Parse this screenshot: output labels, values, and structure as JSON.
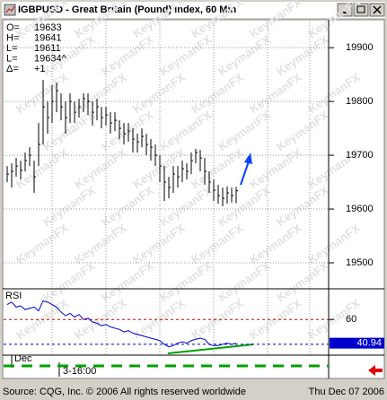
{
  "window": {
    "title": "IGBPUSD - Great Britain (Pound) Index, 60 Min"
  },
  "readout": [
    {
      "label": "O=",
      "value": "19633"
    },
    {
      "label": "H=",
      "value": "19641"
    },
    {
      "label": "L=",
      "value": "19611"
    },
    {
      "label": "L=",
      "value": "19634^"
    },
    {
      "label": "Δ=",
      "value": "+1"
    }
  ],
  "watermark": "KeymanFX",
  "chart_data": [
    {
      "type": "ohlc",
      "color": "#000000",
      "high": [
        19680,
        19685,
        19695,
        19690,
        19705,
        19715,
        19690,
        19760,
        19840,
        19800,
        19830,
        19835,
        19815,
        19800,
        19815,
        19800,
        19805,
        19815,
        19815,
        19800,
        19805,
        19790,
        19790,
        19780,
        19780,
        19765,
        19760,
        19760,
        19750,
        19740,
        19750,
        19740,
        19730,
        19720,
        19700,
        19680,
        19660,
        19680,
        19680,
        19690,
        19685,
        19705,
        19712,
        19710,
        19695,
        19670,
        19655,
        19645,
        19640,
        19642,
        19640,
        19641
      ],
      "low": [
        19650,
        19640,
        19660,
        19655,
        19670,
        19680,
        19630,
        19680,
        19720,
        19740,
        19760,
        19780,
        19765,
        19740,
        19760,
        19760,
        19770,
        19780,
        19775,
        19755,
        19765,
        19750,
        19755,
        19740,
        19745,
        19730,
        19720,
        19725,
        19705,
        19705,
        19715,
        19700,
        19690,
        19680,
        19650,
        19615,
        19620,
        19630,
        19640,
        19650,
        19655,
        19665,
        19685,
        19670,
        19645,
        19630,
        19615,
        19610,
        19605,
        19610,
        19612,
        19611
      ],
      "close": [
        19665,
        19670,
        19680,
        19672,
        19690,
        19700,
        19660,
        19720,
        19790,
        19770,
        19800,
        19820,
        19790,
        19770,
        19800,
        19780,
        19790,
        19805,
        19800,
        19780,
        19790,
        19770,
        19775,
        19760,
        19765,
        19750,
        19740,
        19745,
        19730,
        19725,
        19735,
        19720,
        19715,
        19700,
        19680,
        19650,
        19640,
        19665,
        19660,
        19675,
        19670,
        19690,
        19705,
        19695,
        19670,
        19650,
        19635,
        19625,
        19620,
        19630,
        19625,
        19634
      ],
      "ylim": [
        19455,
        19952
      ],
      "yticks": [
        19500,
        19600,
        19700,
        19800,
        19900
      ],
      "grid": true
    },
    {
      "type": "line",
      "label": "RSI",
      "color": "#0000cc",
      "values": [
        72,
        74,
        70,
        71,
        68,
        69,
        70,
        67,
        75,
        74,
        72,
        70,
        66,
        63,
        65,
        62,
        64,
        60,
        61,
        58,
        57,
        55,
        56,
        54,
        53,
        52,
        50,
        51,
        49,
        48,
        47,
        46,
        45,
        44,
        43,
        40,
        38,
        39,
        41,
        42,
        41,
        43,
        44,
        45,
        44,
        40,
        39,
        39,
        40,
        41,
        40,
        40.94
      ],
      "ylim": [
        32,
        84
      ],
      "yticks": [
        60
      ],
      "levels": [
        {
          "value": 60,
          "color": "#cc0000"
        },
        {
          "value": 40,
          "color": "#0000cc"
        }
      ]
    }
  ],
  "time_axis": {
    "labels": [
      "Dec",
      "3-16:00"
    ]
  },
  "status": {
    "source": "Source: CQG, Inc. © 2006 All rights reserved worldwide",
    "date": "Thu Dec 07 2006"
  }
}
